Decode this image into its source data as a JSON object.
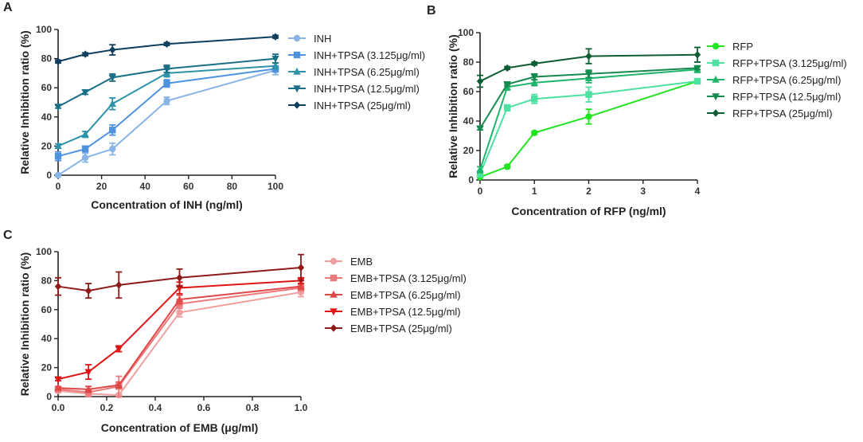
{
  "chart_data": [
    {
      "type": "line",
      "panel": "A",
      "xlabel": "Concentration of INH (ng/ml)",
      "ylabel": "Relative Inhibition ratio (%)",
      "xlim": [
        0,
        100
      ],
      "ylim": [
        0,
        100
      ],
      "xticks": [
        0,
        20,
        40,
        60,
        80,
        100
      ],
      "yticks": [
        0,
        20,
        40,
        60,
        80,
        100
      ],
      "legend_position": "right",
      "x": [
        0,
        12.5,
        25,
        50,
        100
      ],
      "series": [
        {
          "name": "INH",
          "marker": "circle",
          "color": "#8ab4e8",
          "values": [
            0,
            12,
            18,
            51,
            72
          ],
          "errors": [
            0.5,
            3,
            4,
            2.5,
            3
          ]
        },
        {
          "name": "INH+TPSA (3.125μg/ml)",
          "marker": "square",
          "color": "#4f93e0",
          "values": [
            13,
            18,
            31,
            63,
            73
          ],
          "errors": [
            3,
            2,
            3.5,
            2.5,
            2
          ]
        },
        {
          "name": "INH+TPSA (6.25μg/ml)",
          "marker": "triangle-up",
          "color": "#2e93a8",
          "values": [
            20,
            28,
            49,
            70,
            75
          ],
          "errors": [
            1.5,
            2,
            4,
            2.5,
            2
          ]
        },
        {
          "name": "INH+TPSA (12.5μg/ml)",
          "marker": "triangle-down",
          "color": "#1a6f87",
          "values": [
            47,
            57,
            67,
            73,
            80
          ],
          "errors": [
            1,
            1.5,
            2.5,
            2.5,
            3
          ]
        },
        {
          "name": "INH+TPSA (25μg/ml)",
          "marker": "diamond",
          "color": "#0e3f5e",
          "values": [
            78,
            83,
            86,
            90,
            95
          ],
          "errors": [
            1,
            1,
            3.5,
            1,
            1
          ]
        }
      ]
    },
    {
      "type": "line",
      "panel": "B",
      "xlabel": "Concentration of RFP (ng/ml)",
      "ylabel": "Relative Inhibition ratio (%)",
      "xlim": [
        0,
        4
      ],
      "ylim": [
        0,
        100
      ],
      "xticks": [
        0,
        1,
        2,
        3,
        4
      ],
      "yticks": [
        0,
        20,
        40,
        60,
        80,
        100
      ],
      "legend_position": "right",
      "x": [
        0,
        0.5,
        1,
        2,
        4
      ],
      "series": [
        {
          "name": "RFP",
          "marker": "circle",
          "color": "#22e422",
          "values": [
            2,
            9,
            32,
            43,
            67
          ],
          "errors": [
            0.5,
            1,
            1,
            5,
            1
          ]
        },
        {
          "name": "RFP+TPSA (3.125μg/ml)",
          "marker": "square",
          "color": "#4de0a0",
          "values": [
            4,
            49,
            55,
            58,
            67
          ],
          "errors": [
            2,
            2,
            3,
            5,
            1.5
          ]
        },
        {
          "name": "RFP+TPSA (6.25μg/ml)",
          "marker": "triangle-up",
          "color": "#1fb56b",
          "values": [
            7,
            63,
            66,
            69,
            75
          ],
          "errors": [
            2,
            2,
            2,
            3,
            2
          ]
        },
        {
          "name": "RFP+TPSA (12.5μg/ml)",
          "marker": "triangle-down",
          "color": "#158a4e",
          "values": [
            35,
            65,
            70,
            72,
            76
          ],
          "errors": [
            1,
            1,
            2,
            2.5,
            1
          ]
        },
        {
          "name": "RFP+TPSA (25μg/ml)",
          "marker": "diamond",
          "color": "#0d5c33",
          "values": [
            67,
            76,
            79,
            84,
            85
          ],
          "errors": [
            4,
            1,
            1,
            5,
            5
          ]
        }
      ]
    },
    {
      "type": "line",
      "panel": "C",
      "xlabel": "Concentration of EMB (μg/ml)",
      "ylabel": "Relative Inhibition ratio (%)",
      "xlim": [
        0,
        1
      ],
      "ylim": [
        0,
        100
      ],
      "xticks": [
        0.0,
        0.2,
        0.4,
        0.6,
        0.8,
        1.0
      ],
      "xtick_labels": [
        "0.0",
        "0.2",
        "0.4",
        "0.6",
        "0.8",
        "1.0"
      ],
      "yticks": [
        0,
        20,
        40,
        60,
        80,
        100
      ],
      "legend_position": "right",
      "x": [
        0,
        0.125,
        0.25,
        0.5,
        1
      ],
      "series": [
        {
          "name": "EMB",
          "marker": "circle",
          "color": "#f0a0a0",
          "values": [
            4,
            2,
            1,
            58,
            72
          ],
          "errors": [
            1,
            1,
            1,
            3,
            3
          ]
        },
        {
          "name": "EMB+TPSA (3.125μg/ml)",
          "marker": "square",
          "color": "#ec7a7a",
          "values": [
            5,
            3,
            7,
            64,
            75
          ],
          "errors": [
            1,
            4,
            7,
            3,
            2
          ]
        },
        {
          "name": "EMB+TPSA (6.25μg/ml)",
          "marker": "triangle-up",
          "color": "#e04848",
          "values": [
            6,
            5,
            8,
            67,
            76
          ],
          "errors": [
            1,
            2,
            2,
            3,
            2
          ]
        },
        {
          "name": "EMB+TPSA (12.5μg/ml)",
          "marker": "triangle-down",
          "color": "#e01515",
          "values": [
            12,
            17,
            33,
            75,
            80
          ],
          "errors": [
            1,
            5,
            2,
            4,
            2
          ]
        },
        {
          "name": "EMB+TPSA (25μg/ml)",
          "marker": "diamond",
          "color": "#8e1a1a",
          "values": [
            76,
            73,
            77,
            82,
            89
          ],
          "errors": [
            6,
            5,
            9,
            6,
            9
          ]
        }
      ]
    }
  ]
}
